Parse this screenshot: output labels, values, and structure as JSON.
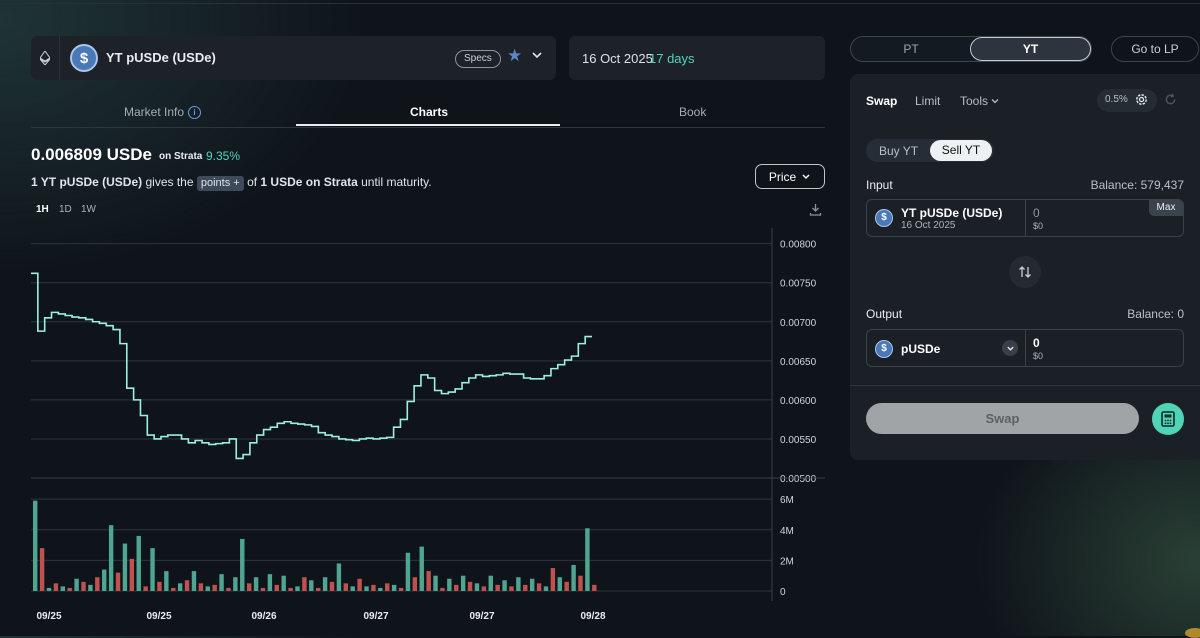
{
  "market": {
    "name": "YT pUSDe (USDe)",
    "specs_label": "Specs",
    "maturity_date": "16 Oct 2025",
    "days_left": "17 days"
  },
  "tabs": [
    {
      "label": "Market Info"
    },
    {
      "label": "Charts"
    },
    {
      "label": "Book"
    }
  ],
  "summary": {
    "price": "0.006809 USDe",
    "venue": "on Strata",
    "pct": "9.35%",
    "line_1": "1 YT pUSDe (USDe)",
    "line_2": "gives the",
    "points": "points",
    "points_icon": "+",
    "line_3": "of",
    "line_4": "1 USDe on Strata",
    "line_5": "until maturity.",
    "price_button": "Price"
  },
  "timeframes": [
    "1H",
    "1D",
    "1W"
  ],
  "active_timeframe": "1H",
  "chart_data": {
    "type": "line",
    "price_series": {
      "name": "Price",
      "values": [
        0.00762,
        0.00688,
        0.00705,
        0.00712,
        0.0071,
        0.00708,
        0.00706,
        0.00705,
        0.00703,
        0.007,
        0.00698,
        0.00695,
        0.0069,
        0.00672,
        0.00615,
        0.006,
        0.0058,
        0.00555,
        0.0055,
        0.00553,
        0.00555,
        0.00555,
        0.0055,
        0.00545,
        0.00548,
        0.00545,
        0.00543,
        0.00544,
        0.00545,
        0.0055,
        0.00525,
        0.0053,
        0.00545,
        0.00555,
        0.00562,
        0.00565,
        0.0057,
        0.00572,
        0.0057,
        0.00569,
        0.00568,
        0.00566,
        0.00558,
        0.00555,
        0.00553,
        0.0055,
        0.00549,
        0.00548,
        0.0055,
        0.00551,
        0.0055,
        0.00551,
        0.00552,
        0.00565,
        0.00575,
        0.00598,
        0.00618,
        0.00632,
        0.00628,
        0.00612,
        0.00608,
        0.0061,
        0.00614,
        0.00622,
        0.00628,
        0.00632,
        0.0063,
        0.00631,
        0.00632,
        0.00634,
        0.00633,
        0.00633,
        0.00628,
        0.00627,
        0.00627,
        0.00631,
        0.0064,
        0.00645,
        0.00651,
        0.00656,
        0.00672,
        0.00681
      ]
    },
    "volume_series": {
      "name": "Volume",
      "values": [
        5.9,
        2.8,
        0.2,
        0.5,
        0.3,
        0.2,
        0.8,
        0.6,
        0.4,
        0.9,
        1.4,
        4.3,
        1.2,
        3.1,
        2.1,
        3.6,
        0.3,
        2.8,
        0.6,
        1.3,
        0.2,
        0.5,
        0.7,
        1.3,
        0.5,
        0.3,
        0.4,
        1.1,
        0.2,
        0.9,
        3.4,
        0.5,
        0.9,
        0.2,
        1.1,
        0.4,
        1.0,
        0.2,
        0.3,
        0.9,
        0.7,
        0.2,
        0.9,
        0.6,
        1.8,
        0.5,
        0.3,
        0.8,
        0.3,
        0.4,
        0.2,
        0.5,
        0.4,
        0.2,
        2.5,
        0.9,
        2.9,
        1.3,
        1.0,
        0.2,
        0.8,
        0.4,
        1.0,
        0.6,
        0.5,
        0.3,
        1.0,
        0.4,
        0.7,
        0.3,
        0.9,
        0.4,
        0.8,
        0.5,
        0.3,
        1.5,
        0.9,
        0.6,
        1.7,
        1.0,
        4.1,
        0.4
      ],
      "colors": [
        "g",
        "r",
        "g",
        "r",
        "g",
        "r",
        "g",
        "r",
        "g",
        "r",
        "g",
        "g",
        "r",
        "g",
        "r",
        "g",
        "r",
        "g",
        "r",
        "g",
        "r",
        "g",
        "r",
        "g",
        "r",
        "g",
        "r",
        "g",
        "r",
        "g",
        "g",
        "r",
        "g",
        "r",
        "g",
        "r",
        "g",
        "r",
        "g",
        "r",
        "g",
        "r",
        "g",
        "r",
        "g",
        "r",
        "g",
        "r",
        "g",
        "r",
        "g",
        "r",
        "g",
        "r",
        "g",
        "r",
        "g",
        "r",
        "g",
        "r",
        "g",
        "r",
        "g",
        "r",
        "g",
        "r",
        "g",
        "r",
        "g",
        "r",
        "g",
        "r",
        "g",
        "r",
        "g",
        "r",
        "g",
        "r",
        "g",
        "r",
        "g",
        "r"
      ]
    },
    "x_tick_labels": [
      "09/25",
      "09/25",
      "09/26",
      "09/27",
      "09/27",
      "09/28"
    ],
    "y_ticks": [
      "0.00800",
      "0.00750",
      "0.00700",
      "0.00650",
      "0.00600",
      "0.00550",
      "0.00500"
    ],
    "ylim": [
      0.005,
      0.0082
    ],
    "volume_ticks": [
      "6M",
      "4M",
      "2M",
      "0"
    ],
    "volume_ylim": [
      0,
      6.6
    ],
    "grid": true
  },
  "colors": {
    "accent": "#53d2b9",
    "line": "#9df0dc",
    "up_bar": "#4ea691",
    "down_bar": "#c1514f",
    "background": "#0f141b"
  },
  "toggle": {
    "pt": "PT",
    "yt": "YT",
    "go_lp": "Go to LP"
  },
  "trade": {
    "tabs": [
      "Swap",
      "Limit",
      "Tools"
    ],
    "slippage": "0.5%",
    "buy": "Buy YT",
    "sell": "Sell YT",
    "input_label": "Input",
    "input_balance": "Balance: 579,437",
    "input_token": "YT pUSDe (USDe)",
    "input_sub": "16 Oct 2025",
    "input_amount": "0",
    "input_usd": "$0",
    "max": "Max",
    "output_label": "Output",
    "output_balance": "Balance: 0",
    "output_token": "pUSDe",
    "output_amount": "0",
    "output_usd": "$0",
    "swap_button": "Swap"
  }
}
